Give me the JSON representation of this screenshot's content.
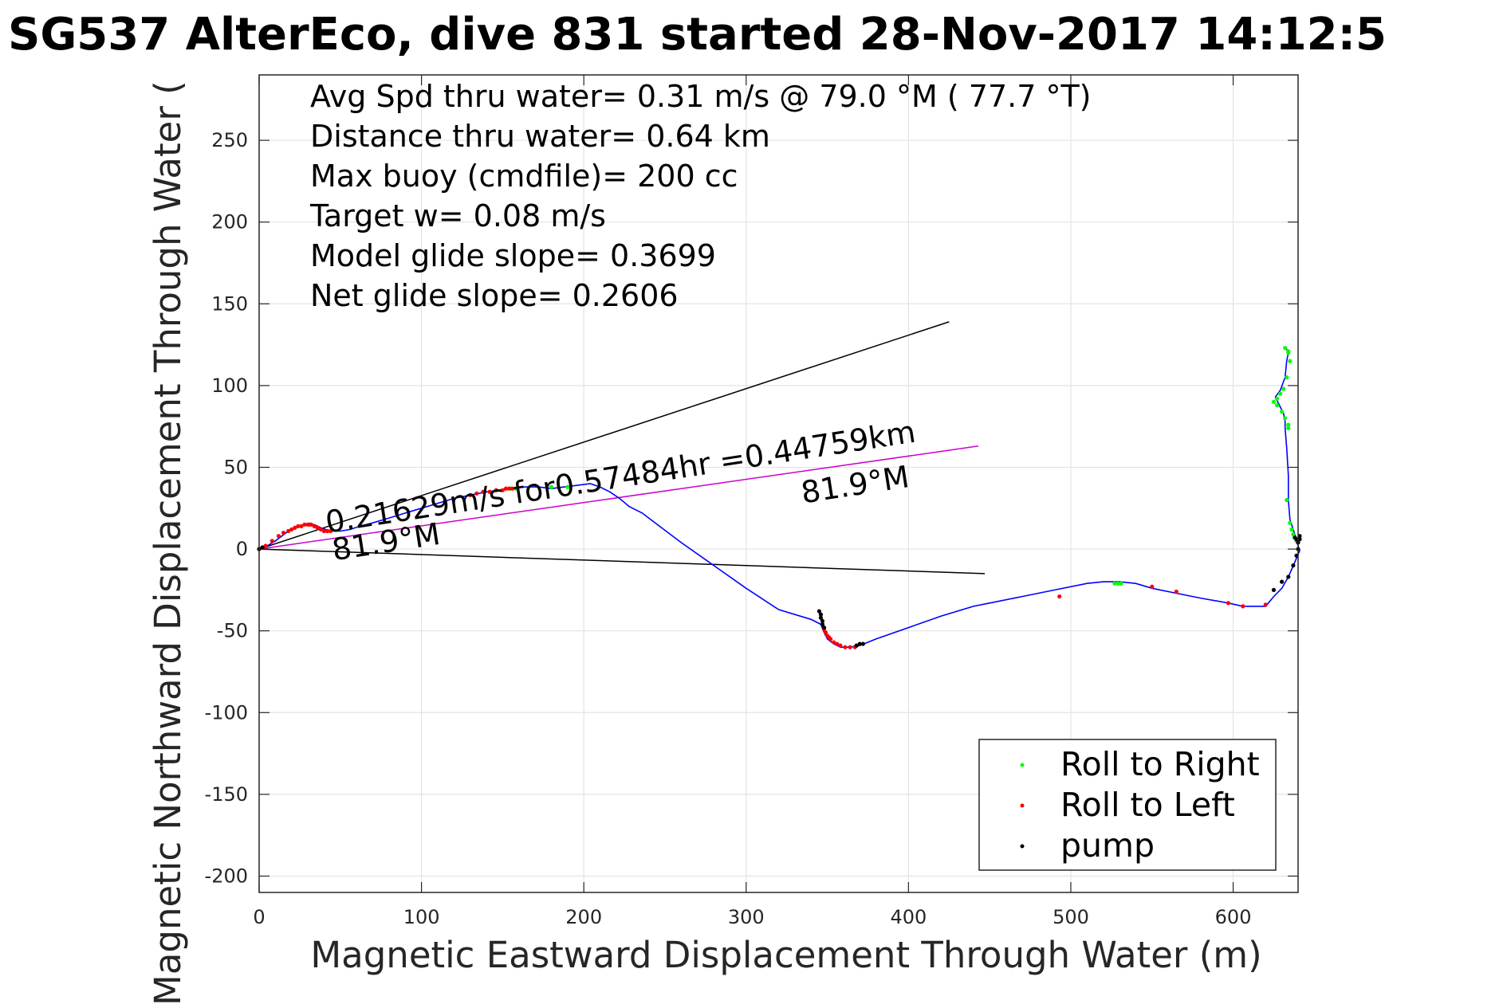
{
  "chart_data": {
    "type": "scatter",
    "title": "SG537 AlterEco, dive 831 started 28-Nov-2017 14:12:5",
    "xlabel": "Magnetic Eastward Displacement Through Water (m)",
    "ylabel": "Magnetic Northward Displacement Through Water (",
    "xlim": [
      0,
      640
    ],
    "ylim": [
      -210,
      290
    ],
    "xticks": [
      0,
      100,
      200,
      300,
      400,
      500,
      600
    ],
    "yticks": [
      -200,
      -150,
      -100,
      -50,
      0,
      50,
      100,
      150,
      200,
      250
    ],
    "grid": true,
    "legend_position": "bottom-right",
    "stats": [
      "Avg Spd thru water=  0.31 m/s @  79.0 °M ( 77.7 °T)",
      "Distance thru water=  0.64 km",
      "Max buoy (cmdfile)= 200 cc",
      "Target w= 0.08 m/s",
      "Model glide slope= 0.3699",
      "Net glide slope= 0.2606"
    ],
    "annotations": [
      {
        "text": "0.21629m/s for0.57484hr =0.44759km",
        "x": 42,
        "y": 10,
        "angle": -8.8
      },
      {
        "text": "81.9°M",
        "x": 46,
        "y": -7,
        "angle": -8.8
      },
      {
        "text": "81.9°M",
        "x": 335,
        "y": 28,
        "angle": -8.8
      }
    ],
    "reference_lines": [
      {
        "name": "upper",
        "color": "#000000",
        "x": [
          0,
          425
        ],
        "y": [
          0,
          139
        ]
      },
      {
        "name": "lower",
        "color": "#000000",
        "x": [
          0,
          447
        ],
        "y": [
          0,
          -15
        ]
      },
      {
        "name": "heading",
        "color": "#cc00cc",
        "x": [
          0,
          443
        ],
        "y": [
          0,
          63
        ]
      }
    ],
    "track": {
      "color": "#0000ff",
      "x": [
        0,
        5,
        10,
        14,
        18,
        22,
        26,
        30,
        34,
        38,
        44,
        50,
        56,
        62,
        70,
        80,
        90,
        100,
        110,
        120,
        130,
        140,
        148,
        156,
        164,
        172,
        180,
        188,
        196,
        204,
        210,
        216,
        222,
        228,
        232,
        236,
        240,
        260,
        280,
        300,
        320,
        340,
        346,
        348,
        350,
        354,
        358,
        364,
        370,
        380,
        400,
        420,
        440,
        450,
        470,
        490,
        510,
        520,
        525,
        530,
        540,
        550,
        565,
        580,
        597,
        606,
        610,
        620,
        625,
        630,
        634,
        638,
        641,
        640,
        639,
        637,
        635,
        634,
        634,
        633,
        632,
        632,
        631,
        630,
        629,
        628,
        627,
        626,
        629,
        632,
        633,
        634,
        633,
        632
      ],
      "y": [
        0,
        2,
        5,
        8,
        11,
        13,
        14,
        15,
        15,
        13,
        11,
        11,
        12,
        14,
        16,
        19,
        22,
        25,
        28,
        31,
        33,
        35,
        36,
        37,
        38,
        38,
        37,
        38,
        39,
        40,
        38,
        35,
        31,
        26,
        24,
        22,
        19,
        4,
        -10,
        -24,
        -37,
        -43,
        -46,
        -51,
        -55,
        -58,
        -60,
        -60,
        -59,
        -55,
        -48,
        -41,
        -35,
        -33,
        -29,
        -25,
        -21,
        -20,
        -20,
        -20,
        -21,
        -24,
        -27,
        -30,
        -33,
        -35,
        -35,
        -35,
        -29,
        -24,
        -17,
        -8,
        -1,
        2,
        6,
        12,
        18,
        30,
        45,
        62,
        74,
        78,
        83,
        85,
        87,
        89,
        91,
        93,
        97,
        105,
        115,
        120,
        122,
        123
      ]
    },
    "markers": {
      "roll_right": {
        "name": "Roll to Right",
        "color": "#00ff00",
        "x": [
          155,
          158,
          180,
          190,
          527,
          529,
          531,
          625,
          627,
          630,
          632,
          634,
          634,
          633,
          635,
          636,
          637,
          638,
          639,
          627,
          629,
          631,
          633,
          635,
          634,
          632,
          634
        ],
        "y": [
          37,
          37,
          38,
          38,
          -21,
          -21,
          -21,
          90,
          88,
          84,
          80,
          76,
          74,
          30,
          16,
          12,
          9,
          7,
          5,
          92,
          95,
          98,
          105,
          115,
          120,
          123,
          121
        ]
      },
      "roll_left": {
        "name": "Roll to Left",
        "color": "#ff0000",
        "x": [
          0,
          2,
          4,
          8,
          12,
          15,
          18,
          20,
          22,
          24,
          26,
          28,
          30,
          31,
          32,
          34,
          36,
          38,
          40,
          42,
          44,
          130,
          134,
          138,
          142,
          146,
          150,
          152,
          154,
          156,
          348,
          349,
          350,
          351,
          352,
          354,
          356,
          358,
          361,
          364,
          367,
          493,
          550,
          565,
          597,
          606,
          620
        ],
        "y": [
          0,
          1,
          2,
          5,
          8,
          10,
          11,
          12,
          13,
          14,
          14,
          15,
          15,
          15,
          15,
          14,
          13,
          12,
          11,
          11,
          11,
          33,
          34,
          35,
          35,
          36,
          36,
          37,
          37,
          37,
          -49,
          -51,
          -53,
          -54,
          -55,
          -57,
          -58,
          -59,
          -60,
          -60,
          -60,
          -29,
          -23,
          -26,
          -33,
          -35,
          -34
        ]
      },
      "pump": {
        "name": "pump",
        "color": "#000000",
        "x": [
          0,
          2,
          345,
          346,
          346,
          347,
          347,
          348,
          368,
          370,
          372,
          625,
          630,
          634,
          637,
          639,
          640,
          640,
          641,
          641,
          639,
          638
        ],
        "y": [
          0,
          1,
          -38,
          -40,
          -42,
          -44,
          -46,
          -48,
          -59,
          -58,
          -58,
          -25,
          -20,
          -17,
          -10,
          -4,
          0,
          4,
          6,
          8,
          6,
          7
        ]
      }
    }
  }
}
